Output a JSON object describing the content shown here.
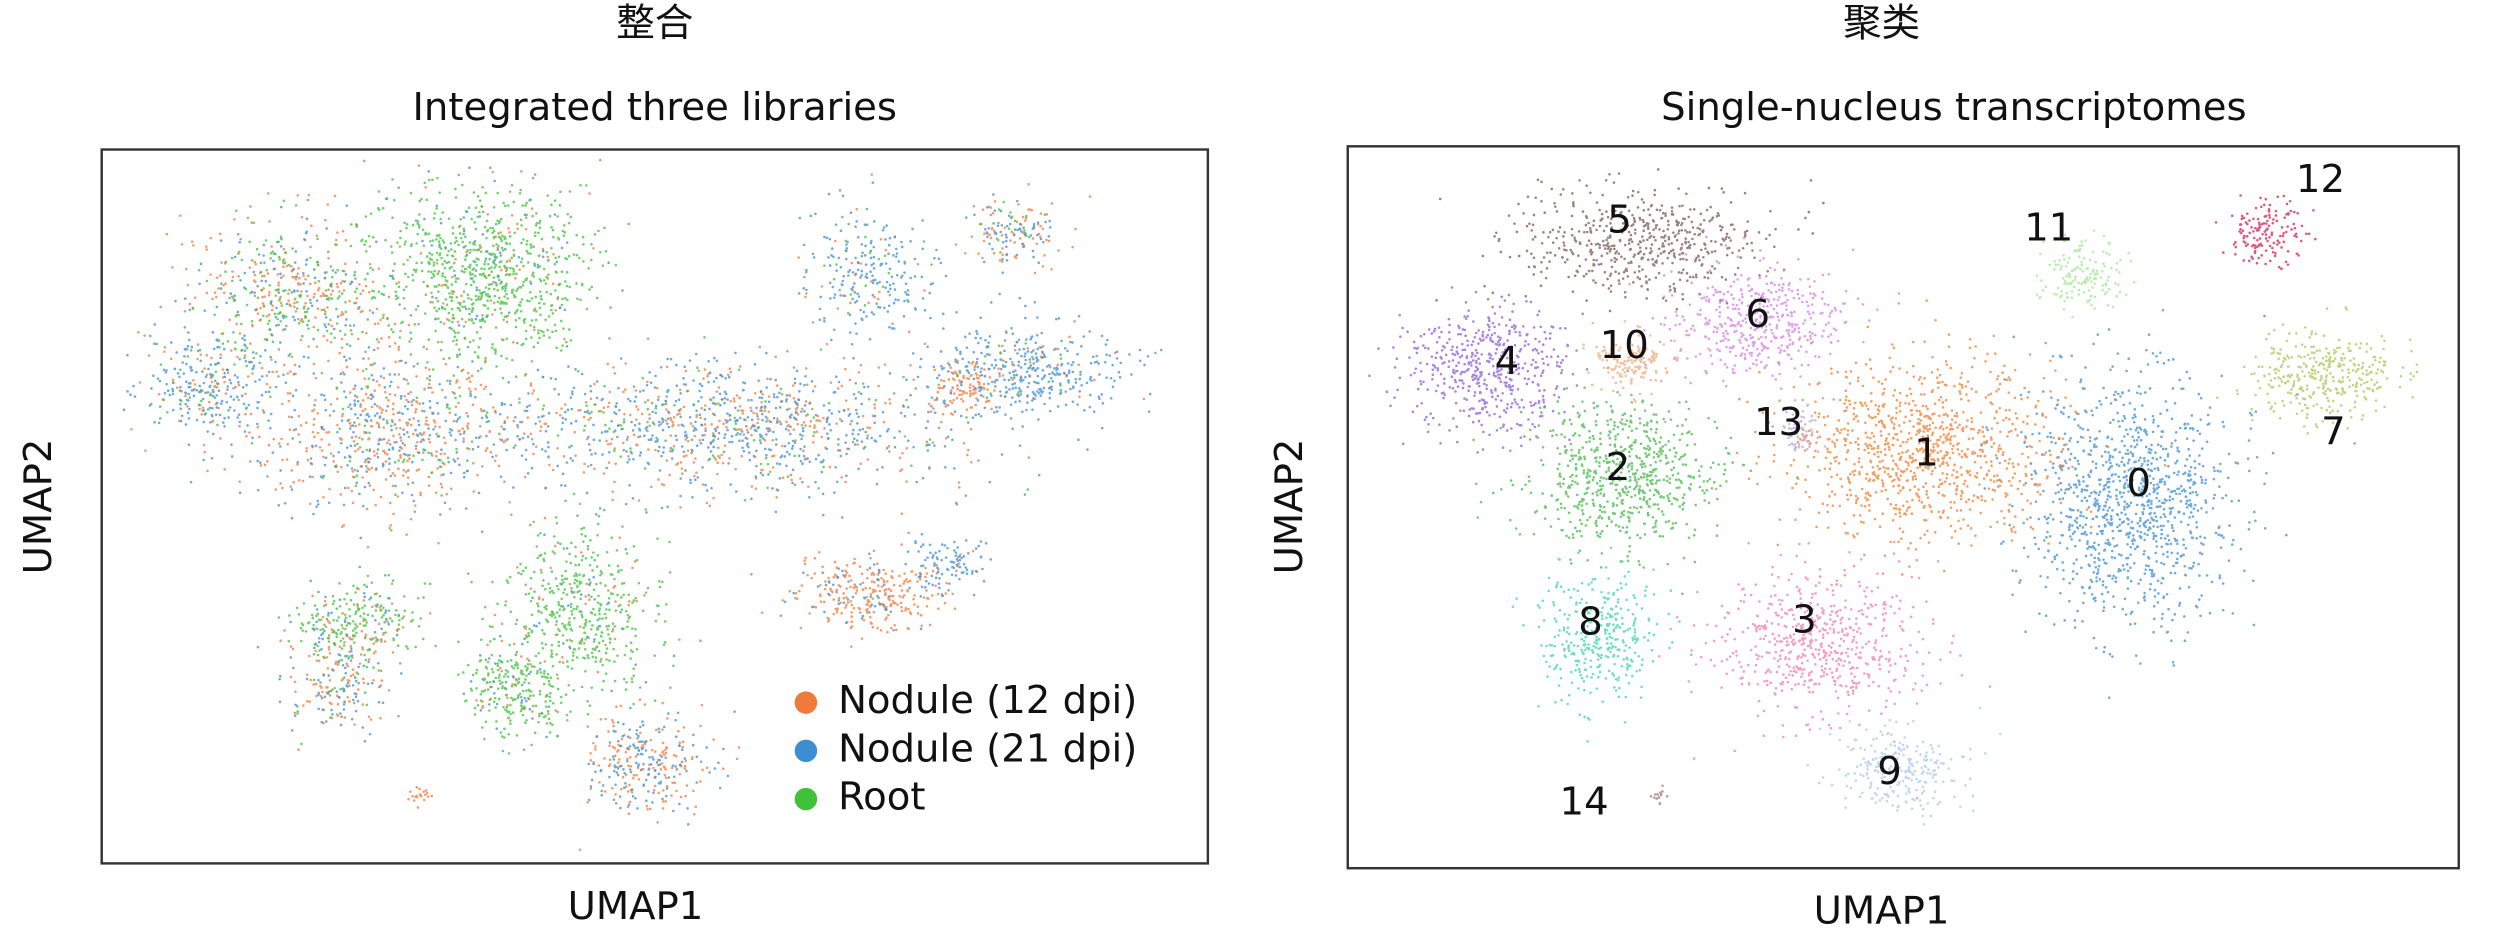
{
  "chart_data": [
    {
      "type": "scatter",
      "supertitle": "整合",
      "title": "Integrated three libraries",
      "xlabel": "UMAP1",
      "ylabel": "UMAP2",
      "legend": "lower right",
      "series": [
        {
          "name": "Nodule (12 dpi)",
          "color": "#f07a3a"
        },
        {
          "name": "Nodule (21 dpi)",
          "color": "#3d8ed0"
        },
        {
          "name": "Root",
          "color": "#3fc23a"
        }
      ]
    },
    {
      "type": "scatter",
      "supertitle": "聚类",
      "title": "Single-nucleus transcriptomes",
      "xlabel": "UMAP1",
      "ylabel": "UMAP2",
      "series": [
        {
          "name": "0",
          "color": "#3d8ed0"
        },
        {
          "name": "1",
          "color": "#f07f30"
        },
        {
          "name": "2",
          "color": "#45b84a"
        },
        {
          "name": "3",
          "color": "#f07fa8"
        },
        {
          "name": "4",
          "color": "#8a5cd6"
        },
        {
          "name": "5",
          "color": "#7a5a52"
        },
        {
          "name": "6",
          "color": "#d67fe6"
        },
        {
          "name": "7",
          "color": "#a8c85a"
        },
        {
          "name": "8",
          "color": "#3fd6a0"
        },
        {
          "name": "9",
          "color": "#a8c8ec"
        },
        {
          "name": "10",
          "color": "#f0a878"
        },
        {
          "name": "11",
          "color": "#a0e890"
        },
        {
          "name": "12",
          "color": "#d42050"
        },
        {
          "name": "13",
          "color": "#b8a8e0"
        },
        {
          "name": "14",
          "color": "#a07880"
        }
      ]
    }
  ]
}
